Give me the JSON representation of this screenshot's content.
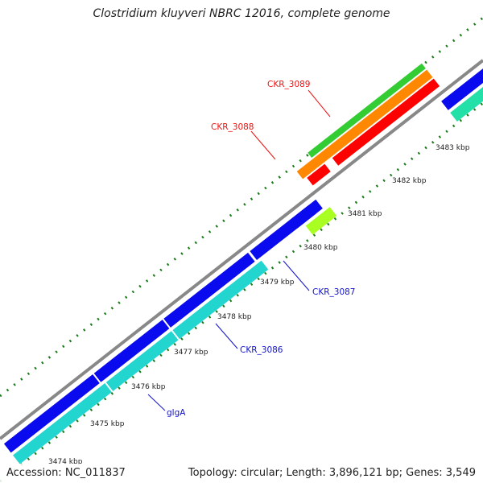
{
  "title": "Clostridium kluyveri NBRC 12016, complete genome",
  "footer": {
    "accession": "Accession: NC_011837",
    "summary": "Topology: circular; Length: 3,896,121 bp; Genes: 3,549"
  },
  "ticks": [
    "3474 kbp",
    "3475 kbp",
    "3476 kbp",
    "3477 kbp",
    "3478 kbp",
    "3479 kbp",
    "3480 kbp",
    "3481 kbp",
    "3482 kbp",
    "3483 kbp"
  ],
  "genes": [
    {
      "label": "CKR_3089",
      "color": "#ee1111"
    },
    {
      "label": "CKR_3088",
      "color": "#ee1111"
    },
    {
      "label": "CKR_3087",
      "color": "#1111cc"
    },
    {
      "label": "CKR_3086",
      "color": "#1111cc"
    },
    {
      "label": "glgA",
      "color": "#1111cc"
    }
  ],
  "colors": {
    "backbone": "#888888",
    "forward": "#0a0aee",
    "reverse": "#22d5cf",
    "red_gene": "#ff0000",
    "orange_gene": "#ff8800",
    "green_gene": "#33cc33",
    "lime_gene": "#aaff22",
    "aqua_gene": "#22e0a8",
    "tick_mark": "#1a7a1a"
  }
}
